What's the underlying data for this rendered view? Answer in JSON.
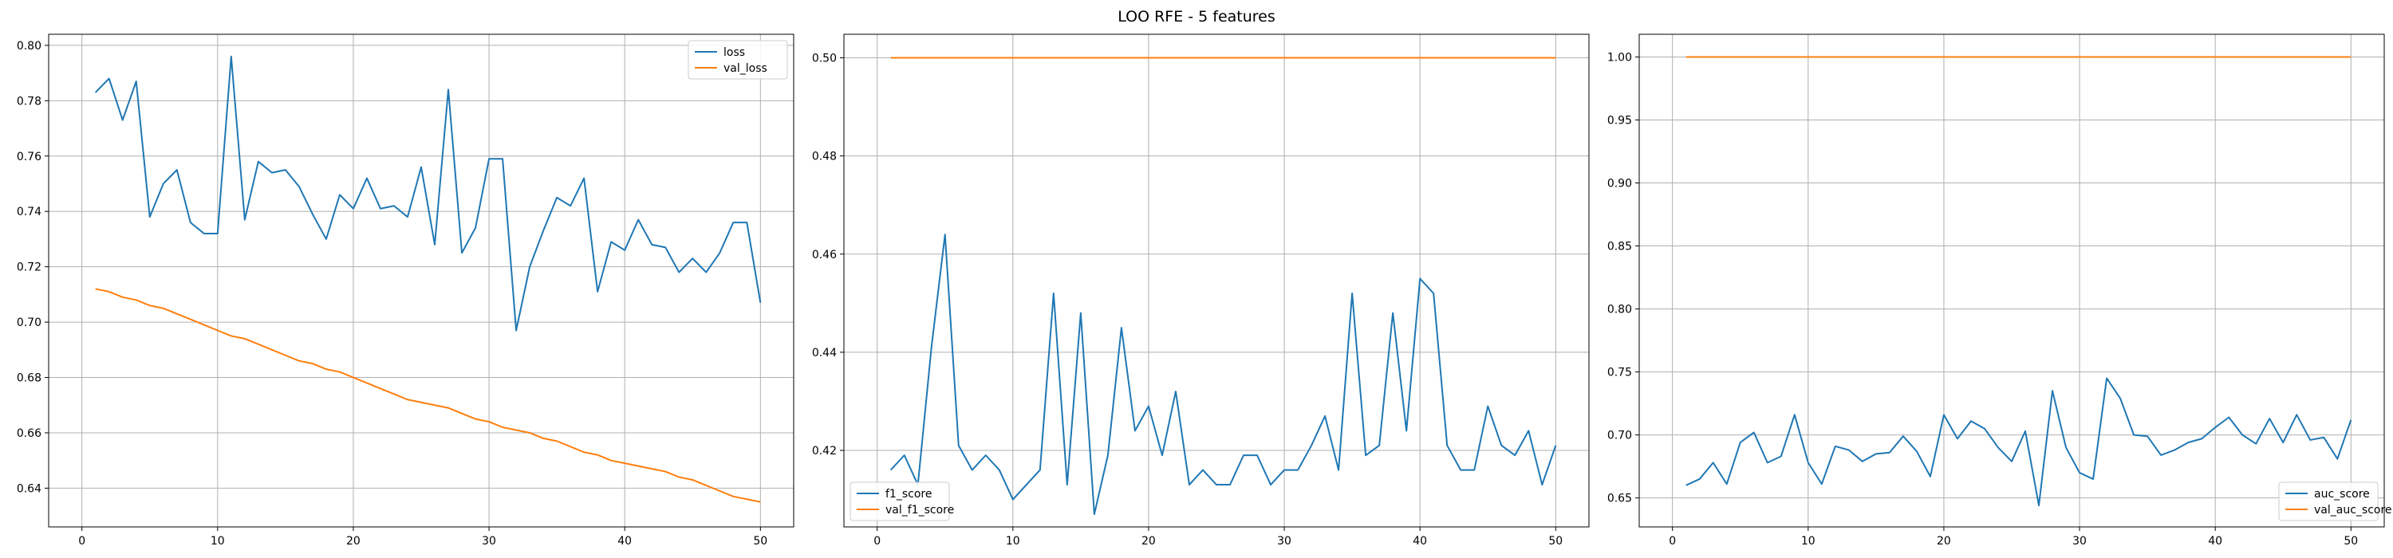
{
  "figure": {
    "title": "LOO RFE - 5 features"
  },
  "colors": {
    "train": "#1f77b4",
    "val": "#ff7f0e",
    "grid": "#b0b0b0",
    "axis": "#000000"
  },
  "chart_data": [
    {
      "type": "line",
      "title": "",
      "xlabel": "",
      "ylabel": "",
      "grid": true,
      "legend_position": "upper right",
      "xlim": [
        -2.45,
        52.45
      ],
      "ylim": [
        0.626,
        0.804
      ],
      "xticks": [
        0,
        10,
        20,
        30,
        40,
        50
      ],
      "yticks": [
        0.64,
        0.66,
        0.68,
        0.7,
        0.72,
        0.74,
        0.76,
        0.78,
        0.8
      ],
      "ytick_labels": [
        "0.64",
        "0.66",
        "0.68",
        "0.70",
        "0.72",
        "0.74",
        "0.76",
        "0.78",
        "0.80"
      ],
      "x": [
        1,
        2,
        3,
        4,
        5,
        6,
        7,
        8,
        9,
        10,
        11,
        12,
        13,
        14,
        15,
        16,
        17,
        18,
        19,
        20,
        21,
        22,
        23,
        24,
        25,
        26,
        27,
        28,
        29,
        30,
        31,
        32,
        33,
        34,
        35,
        36,
        37,
        38,
        39,
        40,
        41,
        42,
        43,
        44,
        45,
        46,
        47,
        48,
        49,
        50
      ],
      "series": [
        {
          "name": "loss",
          "color_key": "train",
          "values": [
            0.783,
            0.788,
            0.773,
            0.787,
            0.738,
            0.75,
            0.755,
            0.736,
            0.732,
            0.732,
            0.796,
            0.737,
            0.758,
            0.754,
            0.755,
            0.749,
            0.739,
            0.73,
            0.746,
            0.741,
            0.752,
            0.741,
            0.742,
            0.738,
            0.756,
            0.728,
            0.784,
            0.725,
            0.734,
            0.759,
            0.759,
            0.697,
            0.72,
            0.733,
            0.745,
            0.742,
            0.752,
            0.711,
            0.729,
            0.726,
            0.737,
            0.728,
            0.727,
            0.718,
            0.723,
            0.718,
            0.725,
            0.736,
            0.736,
            0.707
          ]
        },
        {
          "name": "val_loss",
          "color_key": "val",
          "values": [
            0.712,
            0.711,
            0.709,
            0.708,
            0.706,
            0.705,
            0.703,
            0.701,
            0.699,
            0.697,
            0.695,
            0.694,
            0.692,
            0.69,
            0.688,
            0.686,
            0.685,
            0.683,
            0.682,
            0.68,
            0.678,
            0.676,
            0.674,
            0.672,
            0.671,
            0.67,
            0.669,
            0.667,
            0.665,
            0.664,
            0.662,
            0.661,
            0.66,
            0.658,
            0.657,
            0.655,
            0.653,
            0.652,
            0.65,
            0.649,
            0.648,
            0.647,
            0.646,
            0.644,
            0.643,
            0.641,
            0.639,
            0.637,
            0.636,
            0.635
          ]
        }
      ]
    },
    {
      "type": "line",
      "title": "",
      "xlabel": "",
      "ylabel": "",
      "grid": true,
      "legend_position": "lower left",
      "xlim": [
        -2.45,
        52.45
      ],
      "ylim": [
        0.4044,
        0.5048
      ],
      "xticks": [
        0,
        10,
        20,
        30,
        40,
        50
      ],
      "yticks": [
        0.42,
        0.44,
        0.46,
        0.48,
        0.5
      ],
      "ytick_labels": [
        "0.42",
        "0.44",
        "0.46",
        "0.48",
        "0.50"
      ],
      "x": [
        1,
        2,
        3,
        4,
        5,
        6,
        7,
        8,
        9,
        10,
        11,
        12,
        13,
        14,
        15,
        16,
        17,
        18,
        19,
        20,
        21,
        22,
        23,
        24,
        25,
        26,
        27,
        28,
        29,
        30,
        31,
        32,
        33,
        34,
        35,
        36,
        37,
        38,
        39,
        40,
        41,
        42,
        43,
        44,
        45,
        46,
        47,
        48,
        49,
        50
      ],
      "series": [
        {
          "name": "f1_score",
          "color_key": "train",
          "values": [
            0.416,
            0.419,
            0.413,
            0.441,
            0.464,
            0.421,
            0.416,
            0.419,
            0.416,
            0.41,
            0.413,
            0.416,
            0.452,
            0.413,
            0.448,
            0.407,
            0.419,
            0.445,
            0.424,
            0.429,
            0.419,
            0.432,
            0.413,
            0.416,
            0.413,
            0.413,
            0.419,
            0.419,
            0.413,
            0.416,
            0.416,
            0.421,
            0.427,
            0.416,
            0.452,
            0.419,
            0.421,
            0.448,
            0.424,
            0.455,
            0.452,
            0.421,
            0.416,
            0.416,
            0.429,
            0.421,
            0.419,
            0.424,
            0.413,
            0.421
          ]
        },
        {
          "name": "val_f1_score",
          "color_key": "val",
          "values": [
            0.5,
            0.5,
            0.5,
            0.5,
            0.5,
            0.5,
            0.5,
            0.5,
            0.5,
            0.5,
            0.5,
            0.5,
            0.5,
            0.5,
            0.5,
            0.5,
            0.5,
            0.5,
            0.5,
            0.5,
            0.5,
            0.5,
            0.5,
            0.5,
            0.5,
            0.5,
            0.5,
            0.5,
            0.5,
            0.5,
            0.5,
            0.5,
            0.5,
            0.5,
            0.5,
            0.5,
            0.5,
            0.5,
            0.5,
            0.5,
            0.5,
            0.5,
            0.5,
            0.5,
            0.5,
            0.5,
            0.5,
            0.5,
            0.5,
            0.5
          ]
        }
      ]
    },
    {
      "type": "line",
      "title": "",
      "xlabel": "",
      "ylabel": "",
      "grid": true,
      "legend_position": "lower right",
      "xlim": [
        -2.45,
        52.45
      ],
      "ylim": [
        0.627,
        1.018
      ],
      "xticks": [
        0,
        10,
        20,
        30,
        40,
        50
      ],
      "yticks": [
        0.65,
        0.7,
        0.75,
        0.8,
        0.85,
        0.9,
        0.95,
        1.0
      ],
      "ytick_labels": [
        "0.65",
        "0.70",
        "0.75",
        "0.80",
        "0.85",
        "0.90",
        "0.95",
        "1.00"
      ],
      "x": [
        1,
        2,
        3,
        4,
        5,
        6,
        7,
        8,
        9,
        10,
        11,
        12,
        13,
        14,
        15,
        16,
        17,
        18,
        19,
        20,
        21,
        22,
        23,
        24,
        25,
        26,
        27,
        28,
        29,
        30,
        31,
        32,
        33,
        34,
        35,
        36,
        37,
        38,
        39,
        40,
        41,
        42,
        43,
        44,
        45,
        46,
        47,
        48,
        49,
        50
      ],
      "series": [
        {
          "name": "auc_score",
          "color_key": "train",
          "values": [
            0.66,
            0.665,
            0.678,
            0.661,
            0.694,
            0.702,
            0.678,
            0.683,
            0.716,
            0.678,
            0.661,
            0.691,
            0.688,
            0.679,
            0.685,
            0.686,
            0.699,
            0.687,
            0.667,
            0.716,
            0.697,
            0.711,
            0.705,
            0.69,
            0.679,
            0.703,
            0.644,
            0.735,
            0.69,
            0.67,
            0.665,
            0.745,
            0.729,
            0.7,
            0.699,
            0.684,
            0.688,
            0.694,
            0.697,
            0.706,
            0.714,
            0.7,
            0.693,
            0.713,
            0.694,
            0.716,
            0.696,
            0.698,
            0.681,
            0.712
          ]
        },
        {
          "name": "val_auc_score",
          "color_key": "val",
          "values": [
            1.0,
            1.0,
            1.0,
            1.0,
            1.0,
            1.0,
            1.0,
            1.0,
            1.0,
            1.0,
            1.0,
            1.0,
            1.0,
            1.0,
            1.0,
            1.0,
            1.0,
            1.0,
            1.0,
            1.0,
            1.0,
            1.0,
            1.0,
            1.0,
            1.0,
            1.0,
            1.0,
            1.0,
            1.0,
            1.0,
            1.0,
            1.0,
            1.0,
            1.0,
            1.0,
            1.0,
            1.0,
            1.0,
            1.0,
            1.0,
            1.0,
            1.0,
            1.0,
            1.0,
            1.0,
            1.0,
            1.0,
            1.0,
            1.0,
            1.0
          ]
        }
      ]
    }
  ]
}
